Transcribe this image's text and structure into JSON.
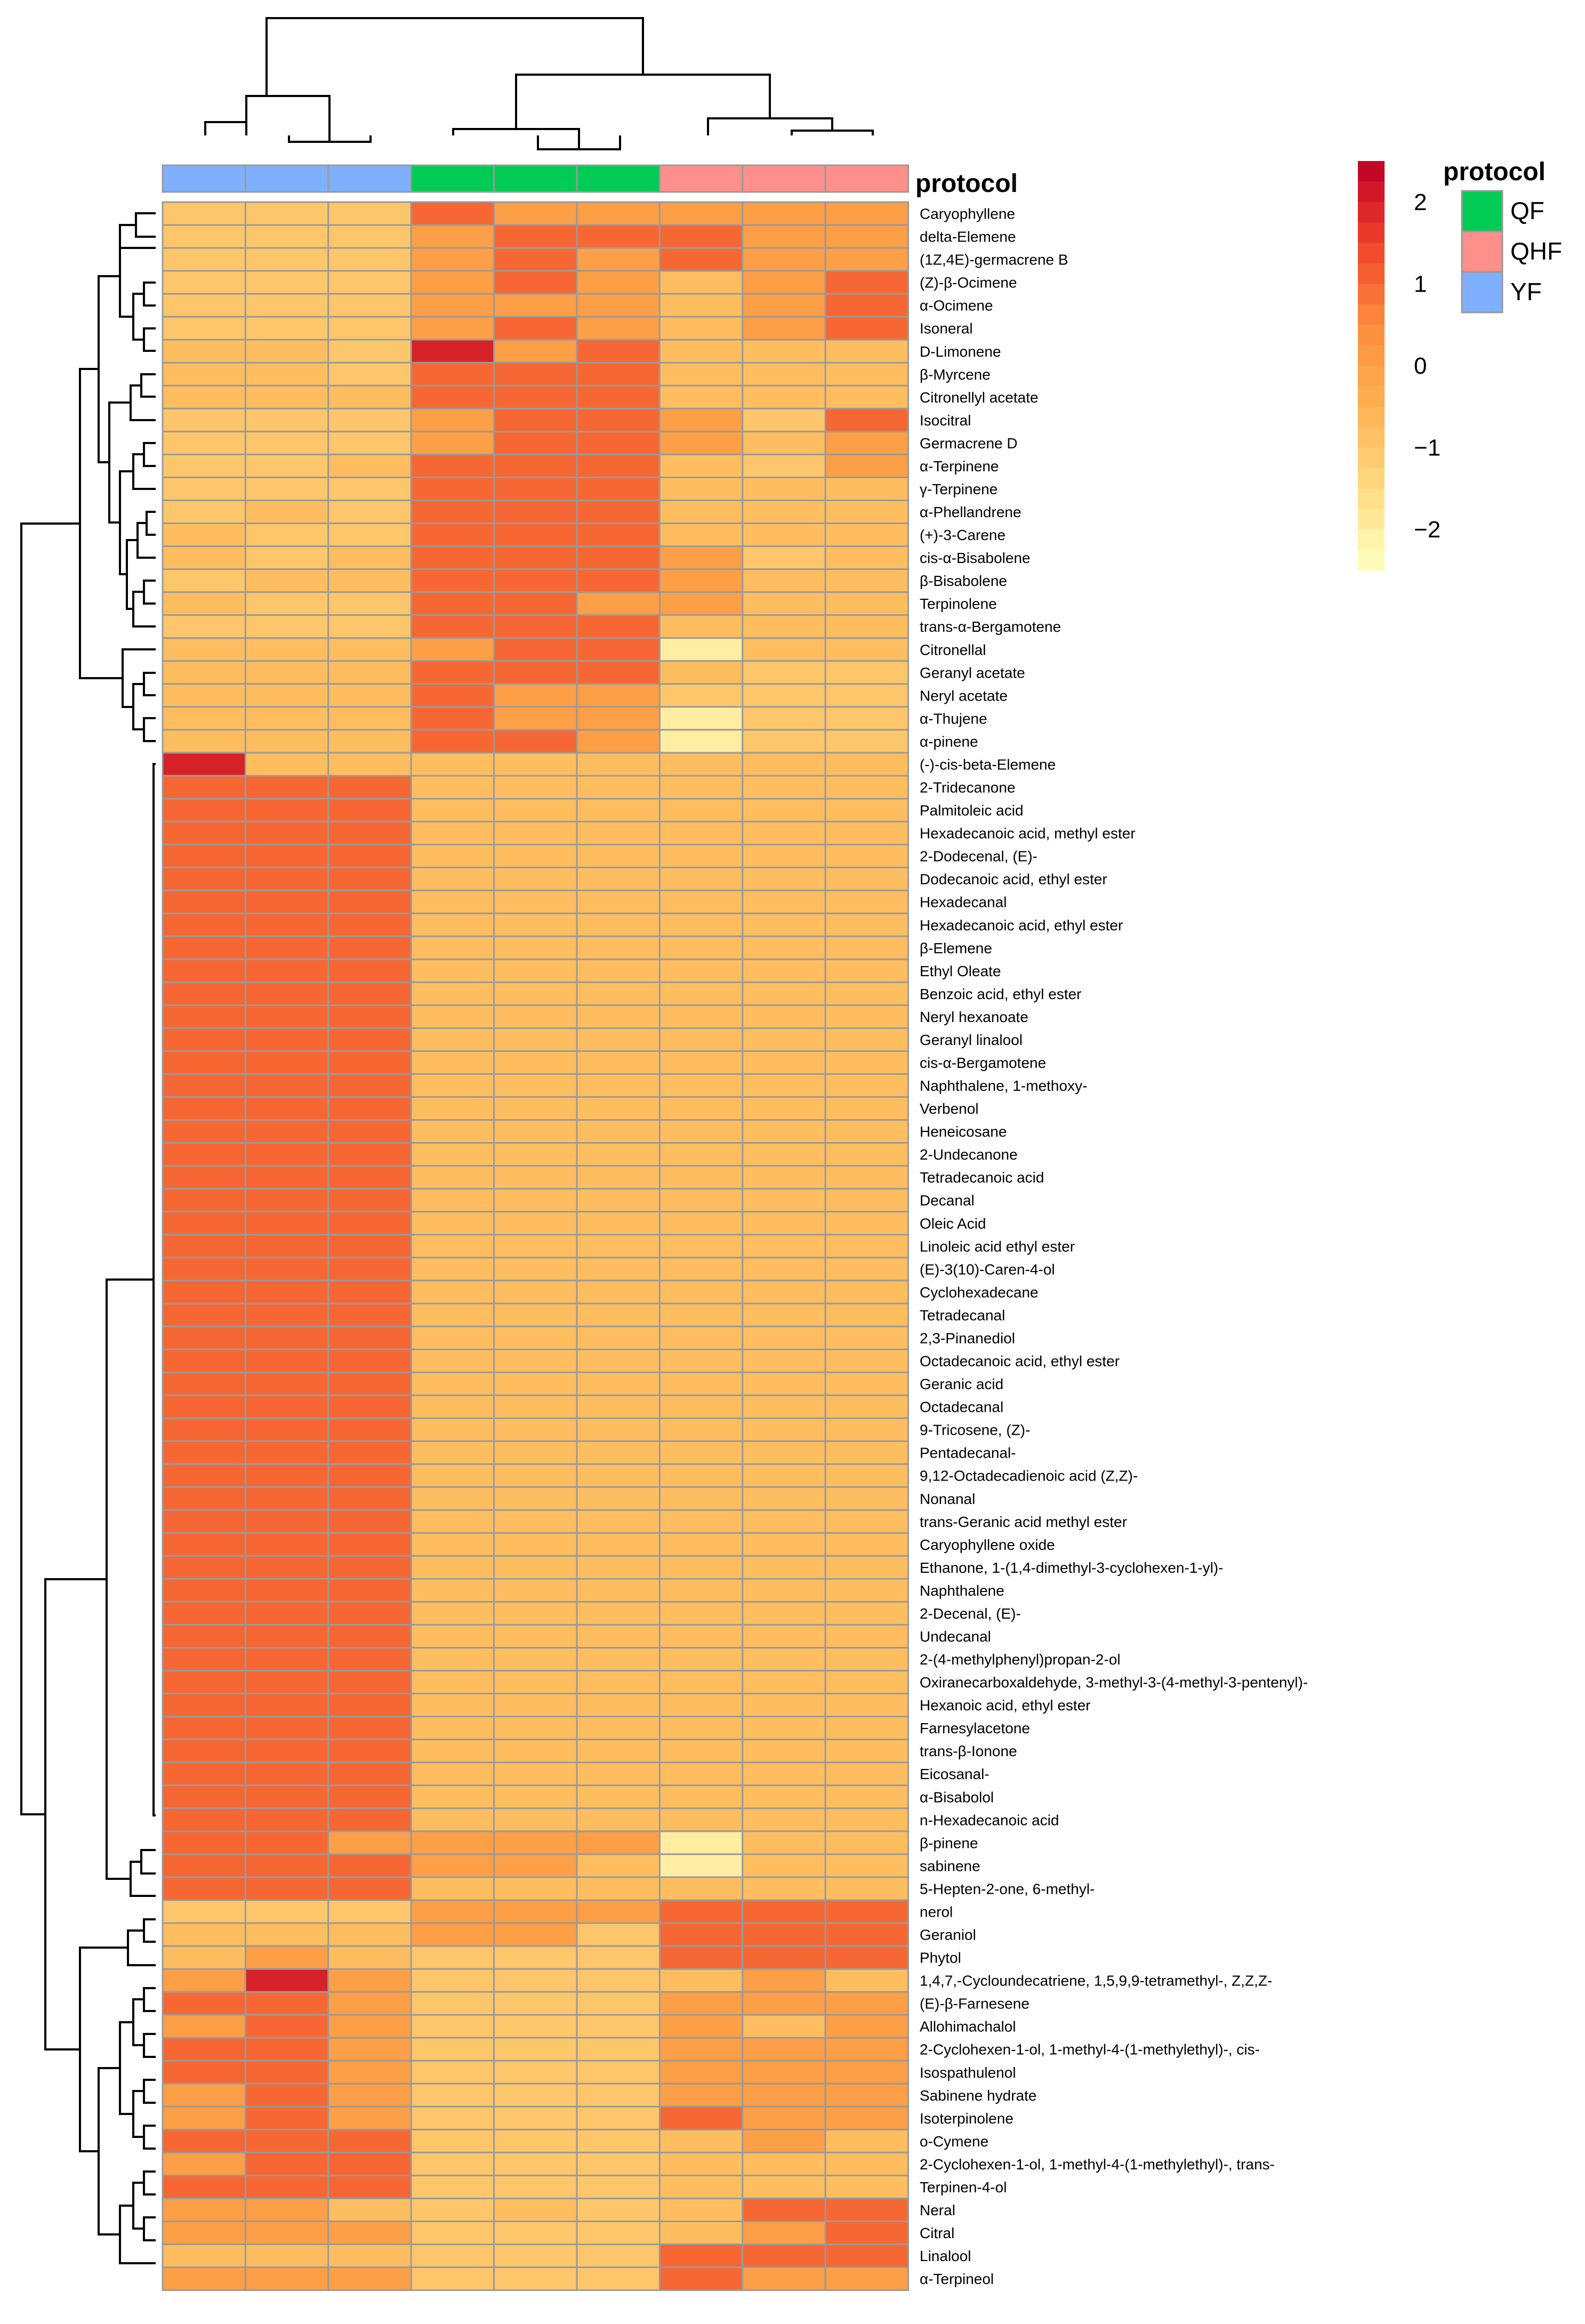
{
  "chart_data": {
    "type": "heatmap",
    "title": "",
    "columns": [
      "YF",
      "YF",
      "YF",
      "QF",
      "QF",
      "QF",
      "QHF",
      "QHF",
      "QHF"
    ],
    "annotation": {
      "title": "protocol",
      "groups": [
        {
          "label": "QF",
          "color": "#00CC55"
        },
        {
          "label": "QHF",
          "color": "#FF8F8A"
        },
        {
          "label": "YF",
          "color": "#7FB0FF"
        }
      ]
    },
    "color_scale": {
      "min": -2.5,
      "max": 2.5,
      "stops": [
        {
          "value": -2.5,
          "color": "#FFFFC0"
        },
        {
          "value": -1.5,
          "color": "#FFDB82"
        },
        {
          "value": -0.5,
          "color": "#FDB152"
        },
        {
          "value": 0.5,
          "color": "#FC8D3C"
        },
        {
          "value": 1.5,
          "color": "#F0412B"
        },
        {
          "value": 2.5,
          "color": "#BD0026"
        }
      ],
      "ticks": [
        2,
        1,
        0,
        -1,
        -2
      ],
      "tick_labels": [
        "2",
        "1",
        "0",
        "−1",
        "−2"
      ]
    },
    "rows": [
      "Caryophyllene",
      "delta-Elemene",
      "(1Z,4E)-germacrene B",
      "(Z)-β-Ocimene",
      "α-Ocimene",
      "Isoneral",
      "D-Limonene",
      "β-Myrcene",
      "Citronellyl acetate",
      "Isocitral",
      "Germacrene D",
      "α-Terpinene",
      "γ-Terpinene",
      "α-Phellandrene",
      "(+)-3-Carene",
      "cis-α-Bisabolene",
      "β-Bisabolene",
      "Terpinolene",
      "trans-α-Bergamotene",
      "Citronellal",
      "Geranyl acetate",
      "Neryl acetate",
      "α-Thujene",
      "α-pinene",
      "(-)-cis-beta-Elemene",
      "2-Tridecanone",
      "Palmitoleic acid",
      "Hexadecanoic acid, methyl ester",
      "2-Dodecenal, (E)-",
      "Dodecanoic acid, ethyl ester",
      "Hexadecanal",
      "Hexadecanoic acid, ethyl ester",
      "β-Elemene",
      "Ethyl Oleate",
      "Benzoic acid, ethyl ester",
      "Neryl hexanoate",
      "Geranyl linalool",
      "cis-α-Bergamotene",
      "Naphthalene, 1-methoxy-",
      "Verbenol",
      "Heneicosane",
      "2-Undecanone",
      "Tetradecanoic acid",
      "Decanal",
      "Oleic Acid",
      "Linoleic acid ethyl ester",
      "(E)-3(10)-Caren-4-ol",
      "Cyclohexadecane",
      "Tetradecanal",
      "2,3-Pinanediol",
      "Octadecanoic acid, ethyl ester",
      "Geranic acid",
      "Octadecanal",
      "9-Tricosene, (Z)-",
      "Pentadecanal-",
      "9,12-Octadecadienoic acid (Z,Z)-",
      "Nonanal",
      "trans-Geranic acid methyl ester",
      "Caryophyllene oxide",
      "Ethanone, 1-(1,4-dimethyl-3-cyclohexen-1-yl)-",
      "Naphthalene",
      "2-Decenal, (E)-",
      "Undecanal",
      "2-(4-methylphenyl)propan-2-ol",
      "Oxiranecarboxaldehyde, 3-methyl-3-(4-methyl-3-pentenyl)-",
      "Hexanoic acid, ethyl ester",
      "Farnesylacetone",
      "trans-β-Ionone",
      "Eicosanal-",
      "α-Bisabolol",
      "n-Hexadecanoic acid",
      "β-pinene",
      "sabinene",
      "5-Hepten-2-one, 6-methyl-",
      "nerol",
      "Geraniol",
      "Phytol",
      "1,4,7,-Cycloundecatriene, 1,5,9,9-tetramethyl-, Z,Z,Z-",
      "(E)-β-Farnesene",
      "Allohimachalol",
      "2-Cyclohexen-1-ol, 1-methyl-4-(1-methylethyl)-, cis-",
      "Isospathulenol",
      "Sabinene hydrate",
      "Isoterpinolene",
      "o-Cymene",
      "2-Cyclohexen-1-ol, 1-methyl-4-(1-methylethyl)-, trans-",
      "Terpinen-4-ol",
      "Neral",
      "Citral",
      "Linalool",
      "α-Terpineol"
    ],
    "values": [
      [
        -1,
        -1,
        -1,
        1,
        0,
        0,
        0,
        0,
        0
      ],
      [
        -1,
        -1,
        -1,
        0,
        1,
        1,
        1,
        0,
        0
      ],
      [
        -1,
        -1,
        -1,
        0,
        1,
        0,
        1,
        0,
        0
      ],
      [
        -1,
        -1,
        -1,
        0,
        1,
        0,
        -0.8,
        0,
        1
      ],
      [
        -1,
        -1,
        -1,
        0,
        0,
        0,
        -0.8,
        0,
        1
      ],
      [
        -1,
        -1,
        -1,
        0,
        1,
        0,
        -0.8,
        0,
        1
      ],
      [
        -0.8,
        -0.8,
        -1,
        2,
        0,
        1,
        -0.8,
        -0.8,
        -0.8
      ],
      [
        -0.8,
        -0.8,
        -1,
        1,
        1,
        1,
        -0.8,
        -0.8,
        -0.8
      ],
      [
        -0.8,
        -0.8,
        -0.8,
        1,
        1,
        1,
        -0.8,
        -0.8,
        -0.8
      ],
      [
        -1,
        -1,
        -1,
        0,
        1,
        1,
        0,
        -1,
        1
      ],
      [
        -1,
        -1,
        -1,
        0,
        1,
        1,
        0,
        -0.8,
        0
      ],
      [
        -1,
        -1,
        -0.8,
        1,
        1,
        1,
        -0.8,
        -1,
        0
      ],
      [
        -1,
        -1,
        -1,
        1,
        1,
        1,
        -0.8,
        -0.8,
        -0.8
      ],
      [
        -1,
        -0.8,
        -1,
        1,
        1,
        1,
        -0.8,
        -0.8,
        -0.8
      ],
      [
        -0.8,
        -1,
        -1,
        1,
        1,
        1,
        -0.8,
        -0.8,
        -0.8
      ],
      [
        -0.8,
        -1,
        -0.8,
        1,
        1,
        1,
        0,
        -1,
        -0.8
      ],
      [
        -1,
        -0.8,
        -0.8,
        1,
        1,
        1,
        0,
        -0.8,
        -0.8
      ],
      [
        -0.8,
        -1,
        -1,
        1,
        1,
        0,
        0,
        -0.8,
        -0.8
      ],
      [
        -1,
        -1,
        -1,
        1,
        1,
        1,
        -0.8,
        -0.8,
        -0.8
      ],
      [
        -0.8,
        -0.8,
        -0.8,
        0,
        1,
        1,
        -2,
        -0.8,
        -0.8
      ],
      [
        -0.8,
        -0.8,
        -0.8,
        1,
        1,
        1,
        -0.8,
        -1,
        -1
      ],
      [
        -0.8,
        -0.8,
        -0.8,
        1,
        0,
        0,
        -1,
        -1,
        -1
      ],
      [
        -0.8,
        -0.8,
        -0.8,
        1,
        0,
        0,
        -2,
        -1,
        -1
      ],
      [
        -0.8,
        -0.8,
        -0.8,
        1,
        1,
        0,
        -2,
        -1,
        -1
      ],
      [
        2,
        -0.8,
        -0.8,
        -0.8,
        -0.8,
        -0.8,
        -0.8,
        -0.8,
        -0.8
      ],
      [
        1,
        1,
        1,
        -0.8,
        -0.8,
        -0.8,
        -0.8,
        -0.8,
        -0.8
      ],
      [
        1,
        1,
        1,
        -0.8,
        -0.8,
        -0.8,
        -0.8,
        -0.8,
        -0.8
      ],
      [
        1,
        1,
        1,
        -0.8,
        -0.8,
        -0.8,
        -0.8,
        -0.8,
        -0.8
      ],
      [
        1,
        1,
        1,
        -0.8,
        -0.8,
        -0.8,
        -0.8,
        -0.8,
        -0.8
      ],
      [
        1,
        1,
        1,
        -0.8,
        -0.8,
        -0.8,
        -0.8,
        -0.8,
        -0.8
      ],
      [
        1,
        1,
        1,
        -0.8,
        -0.8,
        -0.8,
        -0.8,
        -0.8,
        -0.8
      ],
      [
        1,
        1,
        1,
        -0.8,
        -0.8,
        -0.8,
        -0.8,
        -0.8,
        -0.8
      ],
      [
        1,
        1,
        1,
        -0.8,
        -0.8,
        -0.8,
        -0.8,
        -0.8,
        -0.8
      ],
      [
        1,
        1,
        1,
        -0.8,
        -0.8,
        -0.8,
        -0.8,
        -0.8,
        -0.8
      ],
      [
        1,
        1,
        1,
        -0.8,
        -0.8,
        -0.8,
        -0.8,
        -0.8,
        -0.8
      ],
      [
        1,
        1,
        1,
        -0.8,
        -0.8,
        -0.8,
        -0.8,
        -0.8,
        -0.8
      ],
      [
        1,
        1,
        1,
        -0.8,
        -0.8,
        -0.8,
        -0.8,
        -0.8,
        -0.8
      ],
      [
        1,
        1,
        1,
        -0.8,
        -0.8,
        -0.8,
        -0.8,
        -0.8,
        -0.8
      ],
      [
        1,
        1,
        1,
        -0.8,
        -0.8,
        -0.8,
        -0.8,
        -0.8,
        -0.8
      ],
      [
        1,
        1,
        1,
        -0.8,
        -0.8,
        -0.8,
        -0.8,
        -0.8,
        -0.8
      ],
      [
        1,
        1,
        1,
        -0.8,
        -0.8,
        -0.8,
        -0.8,
        -0.8,
        -0.8
      ],
      [
        1,
        1,
        1,
        -0.8,
        -0.8,
        -0.8,
        -0.8,
        -0.8,
        -0.8
      ],
      [
        1,
        1,
        1,
        -0.8,
        -0.8,
        -0.8,
        -0.8,
        -0.8,
        -0.8
      ],
      [
        1,
        1,
        1,
        -0.8,
        -0.8,
        -0.8,
        -0.8,
        -0.8,
        -0.8
      ],
      [
        1,
        1,
        1,
        -0.8,
        -0.8,
        -0.8,
        -0.8,
        -0.8,
        -0.8
      ],
      [
        1,
        1,
        1,
        -0.8,
        -0.8,
        -0.8,
        -0.8,
        -0.8,
        -0.8
      ],
      [
        1,
        1,
        1,
        -0.8,
        -0.8,
        -0.8,
        -0.8,
        -0.8,
        -0.8
      ],
      [
        1,
        1,
        1,
        -0.8,
        -0.8,
        -0.8,
        -0.8,
        -0.8,
        -0.8
      ],
      [
        1,
        1,
        1,
        -0.8,
        -0.8,
        -0.8,
        -0.8,
        -0.8,
        -0.8
      ],
      [
        1,
        1,
        1,
        -0.8,
        -0.8,
        -0.8,
        -0.8,
        -0.8,
        -0.8
      ],
      [
        1,
        1,
        1,
        -0.8,
        -0.8,
        -0.8,
        -0.8,
        -0.8,
        -0.8
      ],
      [
        1,
        1,
        1,
        -0.8,
        -0.8,
        -0.8,
        -0.8,
        -0.8,
        -0.8
      ],
      [
        1,
        1,
        1,
        -0.8,
        -0.8,
        -0.8,
        -0.8,
        -0.8,
        -0.8
      ],
      [
        1,
        1,
        1,
        -0.8,
        -0.8,
        -0.8,
        -0.8,
        -0.8,
        -0.8
      ],
      [
        1,
        1,
        1,
        -0.8,
        -0.8,
        -0.8,
        -0.8,
        -0.8,
        -0.8
      ],
      [
        1,
        1,
        1,
        -0.8,
        -0.8,
        -0.8,
        -0.8,
        -0.8,
        -0.8
      ],
      [
        1,
        1,
        1,
        -0.8,
        -0.8,
        -0.8,
        -0.8,
        -0.8,
        -0.8
      ],
      [
        1,
        1,
        1,
        -0.8,
        -0.8,
        -0.8,
        -0.8,
        -0.8,
        -0.8
      ],
      [
        1,
        1,
        1,
        -0.8,
        -0.8,
        -0.8,
        -0.8,
        -0.8,
        -0.8
      ],
      [
        1,
        1,
        1,
        -0.8,
        -0.8,
        -0.8,
        -0.8,
        -0.8,
        -0.8
      ],
      [
        1,
        1,
        1,
        -0.8,
        -0.8,
        -0.8,
        -0.8,
        -0.8,
        -0.8
      ],
      [
        1,
        1,
        1,
        -0.8,
        -0.8,
        -0.8,
        -0.8,
        -0.8,
        -0.8
      ],
      [
        1,
        1,
        1,
        -0.8,
        -0.8,
        -0.8,
        -0.8,
        -0.8,
        -0.8
      ],
      [
        1,
        1,
        1,
        -0.8,
        -0.8,
        -0.8,
        -0.8,
        -0.8,
        -0.8
      ],
      [
        1,
        1,
        1,
        -0.8,
        -0.8,
        -0.8,
        -0.8,
        -0.8,
        -0.8
      ],
      [
        1,
        1,
        1,
        -0.8,
        -0.8,
        -0.8,
        -0.8,
        -0.8,
        -0.8
      ],
      [
        1,
        1,
        1,
        -0.8,
        -0.8,
        -0.8,
        -0.8,
        -0.8,
        -0.8
      ],
      [
        1,
        1,
        1,
        -0.8,
        -0.8,
        -0.8,
        -0.8,
        -0.8,
        -0.8
      ],
      [
        1,
        1,
        1,
        -0.8,
        -0.8,
        -0.8,
        -0.8,
        -0.8,
        -0.8
      ],
      [
        1,
        1,
        1,
        -0.8,
        -0.8,
        -0.8,
        -0.8,
        -0.8,
        -0.8
      ],
      [
        1,
        1,
        1,
        -0.8,
        -0.8,
        -0.8,
        -0.8,
        -0.8,
        -0.8
      ],
      [
        1,
        1,
        0,
        0,
        0,
        0,
        -2,
        -0.8,
        -0.8
      ],
      [
        1,
        1,
        1,
        0,
        0,
        -0.8,
        -2,
        -0.8,
        -0.8
      ],
      [
        1,
        1,
        1,
        -0.8,
        -0.8,
        -0.8,
        -0.8,
        -0.8,
        -0.8
      ],
      [
        -1,
        -1,
        -1,
        0,
        0,
        0,
        1,
        1,
        1
      ],
      [
        -0.8,
        -0.8,
        -0.8,
        0,
        0,
        -1,
        1,
        1,
        1
      ],
      [
        -0.8,
        0,
        -0.8,
        -1,
        -1,
        -1,
        1,
        1,
        1
      ],
      [
        0,
        2,
        0,
        -1,
        -1,
        -1,
        -0.8,
        0,
        -0.8
      ],
      [
        1,
        1,
        0,
        -1,
        -1,
        -1,
        0,
        0,
        0
      ],
      [
        0,
        1,
        0,
        -1,
        -1,
        -1,
        0,
        -0.8,
        0
      ],
      [
        1,
        1,
        0,
        -1,
        -1,
        -1,
        0,
        0,
        0
      ],
      [
        1,
        1,
        0,
        -1,
        -1,
        -1,
        0,
        0,
        0
      ],
      [
        0,
        1,
        0,
        -1,
        -1,
        -1,
        0,
        0,
        0
      ],
      [
        0,
        1,
        0,
        -1,
        -1,
        -1,
        1,
        0,
        0
      ],
      [
        1,
        1,
        1,
        -1,
        -1,
        -1,
        -0.8,
        0,
        -0.8
      ],
      [
        0,
        1,
        1,
        -1,
        -1,
        -1,
        -0.8,
        -0.8,
        -0.8
      ],
      [
        1,
        1,
        1,
        -1,
        -1,
        -1,
        -0.8,
        -0.8,
        -0.8
      ],
      [
        0,
        0,
        -0.8,
        -1,
        -0.8,
        -1,
        -0.8,
        1,
        1
      ],
      [
        0,
        0,
        0,
        -1,
        -1,
        -1,
        -0.8,
        0,
        1
      ],
      [
        -0.8,
        -0.8,
        -0.8,
        -1,
        -1,
        -1,
        1,
        1,
        1
      ],
      [
        0,
        0,
        0,
        -1,
        -1,
        -1,
        1,
        0,
        0
      ]
    ]
  }
}
